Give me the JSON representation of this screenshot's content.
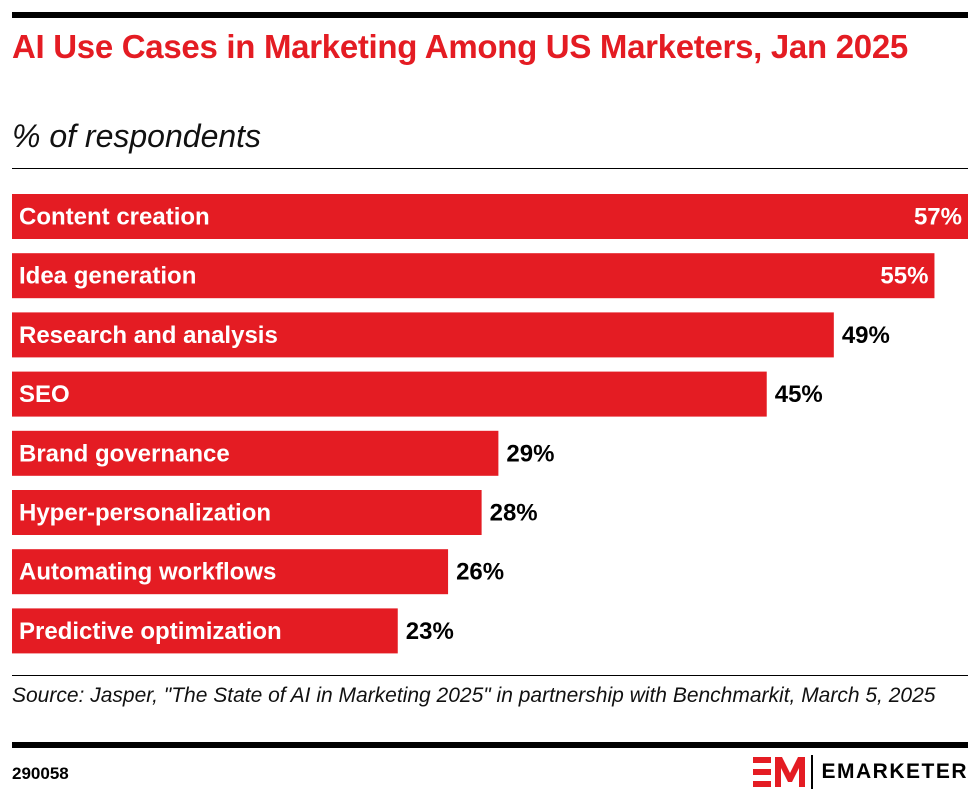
{
  "header": {
    "title": "AI Use Cases in Marketing Among US Marketers, Jan 2025",
    "subtitle": "% of respondents"
  },
  "footer": {
    "source": "Source: Jasper, \"The State of AI in Marketing 2025\" in partnership with Benchmarkit, March 5, 2025",
    "chart_id": "290058",
    "brand": "EMARKETER"
  },
  "colors": {
    "bar": "#e41c23",
    "text_on_bar": "#ffffff",
    "text_off_bar": "#000000"
  },
  "chart_data": {
    "type": "bar",
    "orientation": "horizontal",
    "title": "AI Use Cases in Marketing Among US Marketers, Jan 2025",
    "subtitle": "% of respondents",
    "categories": [
      "Content creation",
      "Idea generation",
      "Research and analysis",
      "SEO",
      "Brand governance",
      "Hyper-personalization",
      "Automating workflows",
      "Predictive optimization"
    ],
    "values": [
      57,
      55,
      49,
      45,
      29,
      28,
      26,
      23
    ],
    "value_labels": [
      "57%",
      "55%",
      "49%",
      "45%",
      "29%",
      "28%",
      "26%",
      "23%"
    ],
    "xlim": [
      0,
      57
    ],
    "grid": false,
    "legend": "none"
  }
}
